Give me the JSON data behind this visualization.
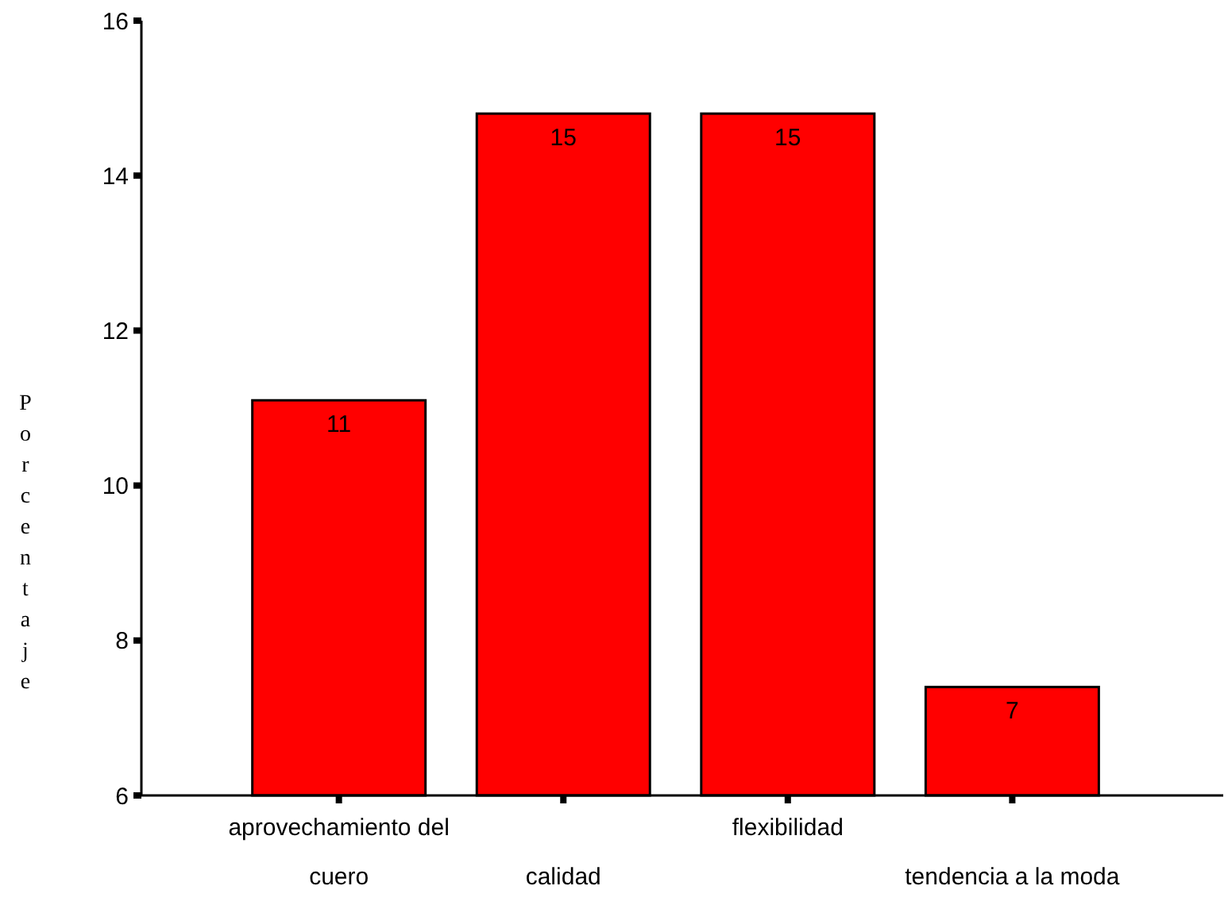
{
  "chart_data": {
    "type": "bar",
    "ylabel": "Porcentaje",
    "categories": [
      "aprovechamiento del cuero",
      "calidad",
      "flexibilidad",
      "tendencia a la moda"
    ],
    "values": [
      11.1,
      14.8,
      14.8,
      7.4
    ],
    "value_labels": [
      "11",
      "15",
      "15",
      "7"
    ],
    "color": "#ff0000",
    "ylim": [
      6,
      16
    ],
    "yticks": [
      6,
      8,
      10,
      12,
      14,
      16
    ],
    "grid": false
  }
}
